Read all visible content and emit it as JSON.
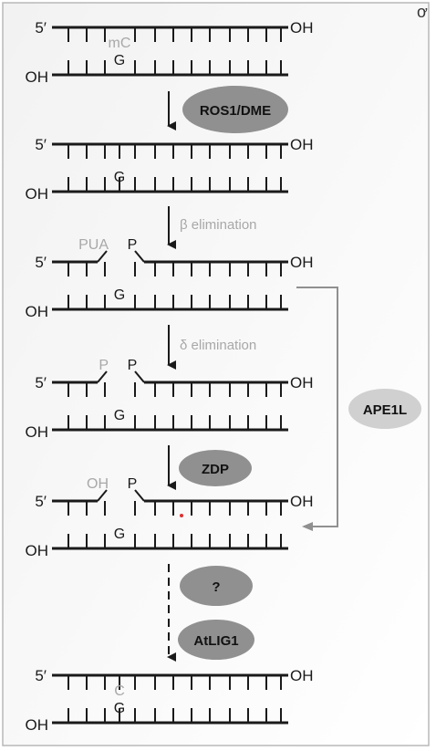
{
  "corner_mark": "ơ",
  "strand_labels": {
    "five_prime": "5′",
    "hydroxyl": "OH"
  },
  "stages": [
    {
      "top_base": "mC",
      "bottom_base": "G"
    },
    {
      "bottom_base": "G"
    },
    {
      "left_end": "PUA",
      "right_end": "P",
      "bottom_base": "G"
    },
    {
      "left_end": "P",
      "right_end": "P",
      "bottom_base": "G"
    },
    {
      "left_end": "OH",
      "right_end": "P",
      "bottom_base": "G"
    },
    {
      "top_base": "C",
      "bottom_base": "G"
    }
  ],
  "enzymes": {
    "ros1_dme": "ROS1/DME",
    "zdp": "ZDP",
    "unknown": "?",
    "atlig1": "AtLIG1",
    "ape1l": "APE1L"
  },
  "reactions": {
    "beta": "β elimination",
    "delta": "δ elimination"
  },
  "colors": {
    "enzyme_dark": "#909090",
    "enzyme_light": "#d0d0d0",
    "faded_text": "#a8a8a8",
    "ink": "#1a1a1a",
    "marker": "#e03030"
  }
}
